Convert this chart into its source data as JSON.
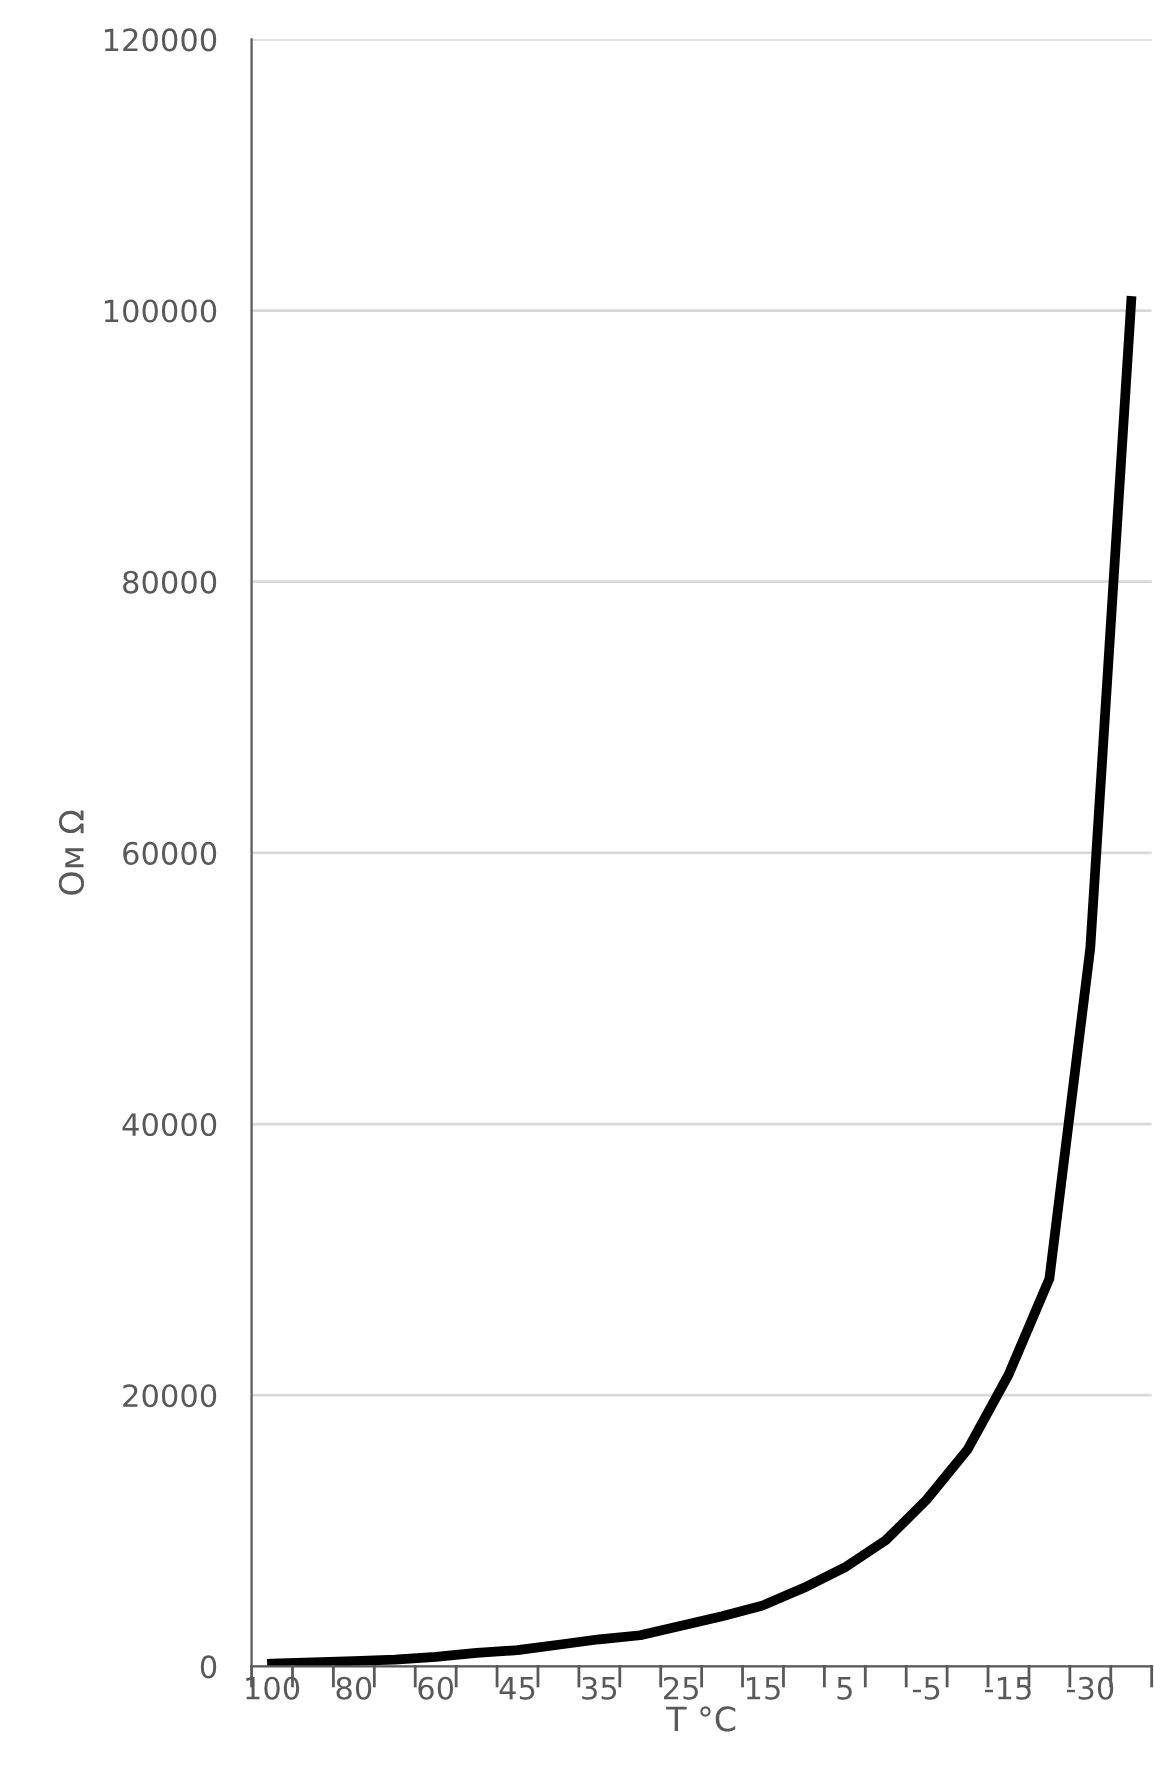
{
  "chart_data": {
    "type": "line",
    "xlabel": "T °C",
    "ylabel": "Ом Ω",
    "categories": [
      "100",
      null,
      "80",
      null,
      "60",
      null,
      "45",
      null,
      "35",
      null,
      "25",
      null,
      "15",
      null,
      "5",
      null,
      "-5",
      null,
      "-15",
      null,
      "-30",
      null
    ],
    "series": [
      {
        "color": "#000000",
        "values": [
          200,
          300,
          400,
          500,
          700,
          1000,
          1200,
          1600,
          2000,
          2300,
          3000,
          3700,
          4500,
          5800,
          7300,
          9300,
          12300,
          16000,
          21500,
          28600,
          53000,
          100700
        ]
      }
    ],
    "ylim": [
      0,
      120000
    ],
    "yticks": [
      0,
      20000,
      40000,
      60000,
      80000,
      100000,
      120000
    ],
    "grid": "y",
    "marker": "none",
    "line_style": "solid"
  }
}
